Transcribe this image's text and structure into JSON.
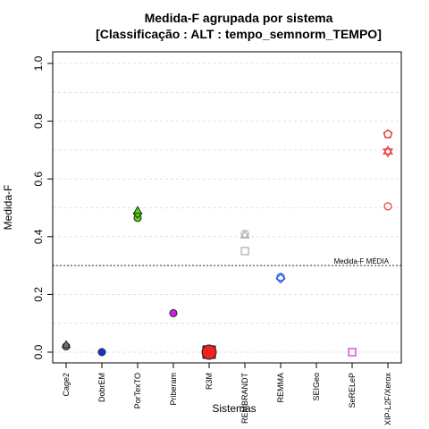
{
  "chart_data": {
    "type": "scatter",
    "title": [
      "Medida-F agrupada por sistema",
      "[Classificação : ALT : tempo_semnorm_TEMPO]"
    ],
    "xlabel": "Sistemas",
    "ylabel": "Medida-F",
    "ylim": [
      0,
      1
    ],
    "yticks": [
      "0.0",
      "0.2",
      "0.4",
      "0.6",
      "0.8",
      "1.0"
    ],
    "grid": true,
    "categories": [
      "Cage2",
      "DobrEM",
      "PorTexTO",
      "Priberam",
      "R3M",
      "REMBRANDT",
      "REMMA",
      "SEIGeo",
      "SeRELeP",
      "XIP-L2F/Xerox"
    ],
    "reference_line": {
      "label": "Medida-F MÉDIA",
      "value": 0.3
    },
    "points": [
      {
        "category": "Cage2",
        "y": 0.02,
        "shape": "circle",
        "color": "#777777",
        "filled": true,
        "size": 4
      },
      {
        "category": "Cage2",
        "y": 0.025,
        "shape": "triangle",
        "color": "#777777",
        "filled": true,
        "size": 4
      },
      {
        "category": "DobrEM",
        "y": 0.0,
        "shape": "circle",
        "color": "#1133dd",
        "filled": true,
        "size": 4
      },
      {
        "category": "PorTexTO",
        "y": 0.465,
        "shape": "circle",
        "color": "#55dd00",
        "filled": true,
        "size": 4
      },
      {
        "category": "PorTexTO",
        "y": 0.48,
        "shape": "diamond",
        "color": "#55dd00",
        "filled": true,
        "size": 4
      },
      {
        "category": "PorTexTO",
        "y": 0.49,
        "shape": "triangle",
        "color": "#55dd00",
        "filled": true,
        "size": 4
      },
      {
        "category": "Priberam",
        "y": 0.135,
        "shape": "circle",
        "color": "#cc22dd",
        "filled": true,
        "size": 4
      },
      {
        "category": "R3M",
        "y": 0.0,
        "shape": "square",
        "color": "#ee2222",
        "filled": true,
        "size": 7
      },
      {
        "category": "R3M",
        "y": 0.0,
        "shape": "circle",
        "color": "#ee2222",
        "filled": true,
        "size": 8
      },
      {
        "category": "REMBRANDT",
        "y": 0.41,
        "shape": "circle",
        "color": "#aaaaaa",
        "filled": false,
        "size": 4
      },
      {
        "category": "REMBRANDT",
        "y": 0.405,
        "shape": "triangle",
        "color": "#aaaaaa",
        "filled": false,
        "size": 4
      },
      {
        "category": "REMBRANDT",
        "y": 0.35,
        "shape": "square",
        "color": "#aaaaaa",
        "filled": false,
        "size": 4
      },
      {
        "category": "REMMA",
        "y": 0.26,
        "shape": "circle",
        "color": "#2255ee",
        "filled": false,
        "size": 4
      },
      {
        "category": "REMMA",
        "y": 0.255,
        "shape": "diamond",
        "color": "#2255ee",
        "filled": false,
        "size": 4
      },
      {
        "category": "SeRELeP",
        "y": 0.0,
        "shape": "square",
        "color": "#dd22dd",
        "filled": false,
        "size": 4
      },
      {
        "category": "XIP-L2F/Xerox",
        "y": 0.755,
        "shape": "circle",
        "color": "#ee3333",
        "filled": false,
        "size": 4
      },
      {
        "category": "XIP-L2F/Xerox",
        "y": 0.755,
        "shape": "pentagon",
        "color": "#ee3333",
        "filled": false,
        "size": 4
      },
      {
        "category": "XIP-L2F/Xerox",
        "y": 0.695,
        "shape": "star",
        "color": "#ee3333",
        "filled": false,
        "size": 4
      },
      {
        "category": "XIP-L2F/Xerox",
        "y": 0.505,
        "shape": "circle",
        "color": "#ee3333",
        "filled": false,
        "size": 4
      }
    ]
  }
}
